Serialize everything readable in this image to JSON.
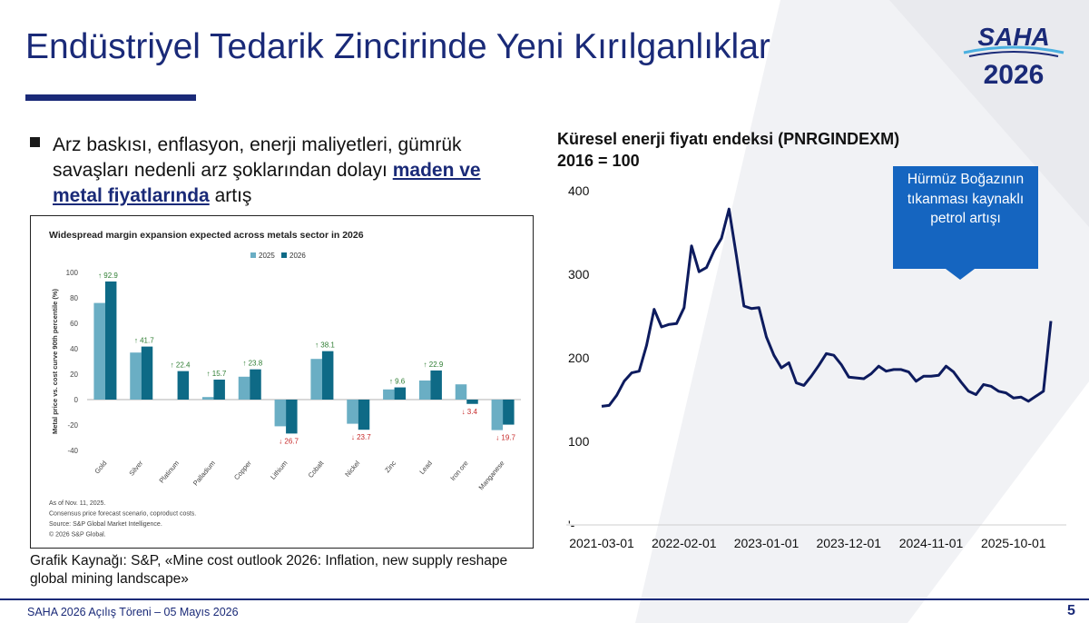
{
  "slide": {
    "title": "Endüstriyel Tedarik Zincirinde Yeni Kırılganlıklar",
    "logo_top": "SAHA",
    "logo_bottom": "2026",
    "bullet": {
      "text_before": "Arz baskısı, enflasyon, enerji maliyetleri, gümrük savaşları nedenli arz şoklarından dolayı ",
      "text_bold": "maden ve metal fiyatlarında",
      "text_after": " artış"
    },
    "source": "Grafik Kaynağı: S&P, «Mine cost outlook 2026: Inflation, new supply reshape global mining landscape»",
    "footer": "SAHA 2026 Açılış Töreni – 05 Mayıs 2026",
    "page_number": "5",
    "callout": "Hürmüz Boğazının tıkanması kaynaklı petrol artışı",
    "colors": {
      "brand": "#1a2a78",
      "accent": "#1565c0",
      "bar_2025": "#6aaec4",
      "bar_2026": "#0e6a86"
    }
  },
  "chart_data": [
    {
      "type": "bar",
      "title": "Widespread margin expansion expected across metals sector in 2026",
      "ylabel": "Metal price vs. cost curve 90th percentile (%)",
      "ylim": [
        -40,
        100
      ],
      "yticks": [
        "100",
        "80",
        "60",
        "40",
        "20",
        "0",
        "-20",
        "-40"
      ],
      "legend": "top",
      "categories": [
        "Gold",
        "Silver",
        "Platinum",
        "Palladium",
        "Copper",
        "Lithium",
        "Cobalt",
        "Nickel",
        "Zinc",
        "Lead",
        "Iron ore",
        "Manganese"
      ],
      "series": [
        {
          "name": "2025",
          "values": [
            76,
            37,
            0,
            2,
            18,
            -21,
            32,
            -19,
            8,
            15,
            12,
            -24
          ]
        },
        {
          "name": "2026",
          "values": [
            92.9,
            41.7,
            22.4,
            15.7,
            23.8,
            -26.7,
            38.1,
            -23.7,
            9.6,
            22.9,
            -3.4,
            -19.7
          ]
        }
      ],
      "data_labels": [
        "↑ 92.9",
        "↑ 41.7",
        "↑ 22.4",
        "↑ 15.7",
        "↑ 23.8",
        "↓ 26.7",
        "↑ 38.1",
        "↓ 23.7",
        "↑ 9.6",
        "↑ 22.9",
        "↓ 3.4",
        "↓ 19.7"
      ],
      "notes": [
        "As of Nov. 11, 2025.",
        "Consensus price forecast scenario, coproduct costs.",
        "Source: S&P Global Market Intelligence.",
        "© 2026 S&P Global."
      ]
    },
    {
      "type": "line",
      "title": "Küresel enerji fiyatı endeksi (PNRGINDEXM)",
      "subtitle": "2016 = 100",
      "ylim": [
        0,
        400
      ],
      "yticks": [
        "400",
        "300",
        "200",
        "100",
        "'-"
      ],
      "xticks": [
        "2021-03-01",
        "2022-02-01",
        "2023-01-01",
        "2023-12-01",
        "2024-11-01",
        "2025-10-01"
      ],
      "x_start": "2021-03",
      "x_end": "2026-04",
      "grid": false,
      "series": [
        {
          "values": [
            142,
            143,
            155,
            172,
            182,
            184,
            215,
            258,
            237,
            240,
            241,
            260,
            334,
            303,
            308,
            328,
            343,
            378,
            322,
            262,
            259,
            260,
            225,
            203,
            188,
            194,
            170,
            167,
            178,
            191,
            205,
            203,
            192,
            177,
            176,
            175,
            181,
            190,
            184,
            186,
            186,
            183,
            172,
            178,
            178,
            179,
            190,
            183,
            171,
            160,
            156,
            168,
            166,
            160,
            158,
            152,
            153,
            148,
            154,
            160,
            244
          ]
        }
      ]
    }
  ]
}
